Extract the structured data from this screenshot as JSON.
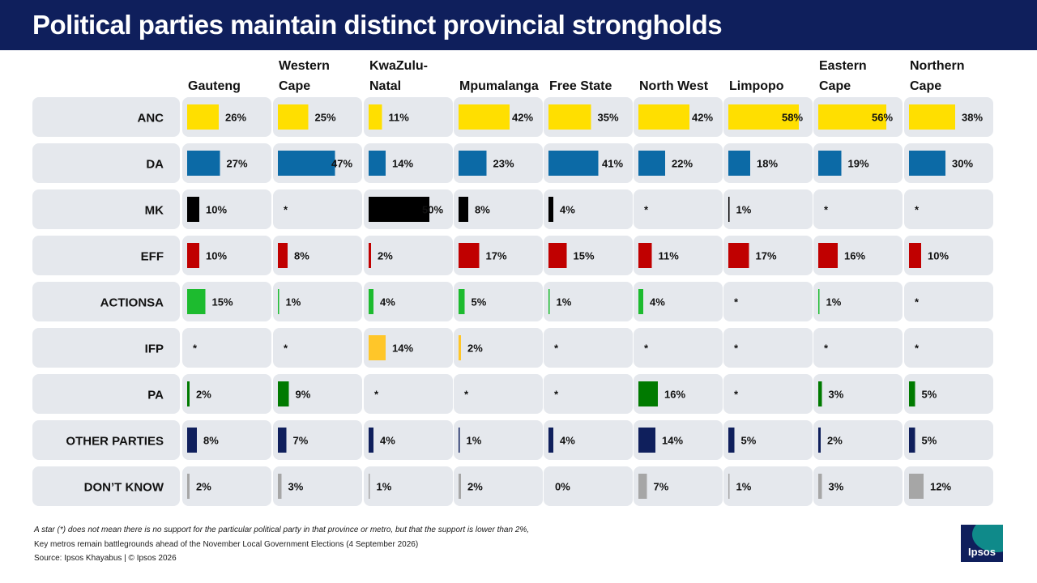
{
  "title": "Political parties maintain distinct provincial strongholds",
  "footnotes": {
    "star_note": "A star (*) does not mean there is no support for the particular political party in that province or metro, but that the support is lower than 2%,",
    "context": "Key metros remain battlegrounds ahead of the November Local Government Elections (4 September 2026)",
    "source": "Source: Ipsos Khayabus | © Ipsos 2026"
  },
  "logo_text": "Ipsos",
  "colors": {
    "ANC": "#ffdf00",
    "DA": "#0c6aa6",
    "MK": "#000000",
    "EFF": "#c00000",
    "ACTIONSA": "#1dbb2f",
    "IFP": "#ffc629",
    "PA": "#007a00",
    "OTHER PARTIES": "#0f1f5c",
    "DON'T KNOW": "#a6a6a6",
    "row_bg": "#e5e8ed",
    "title_bg": "#0f1f5c"
  },
  "chart_data": {
    "type": "bar",
    "title": "Political parties maintain distinct provincial strongholds",
    "categories": [
      "Gauteng",
      "Western Cape",
      "KwaZulu-Natal",
      "Mpumalanga",
      "Free State",
      "North West",
      "Limpopo",
      "Eastern Cape",
      "Northern Cape"
    ],
    "category_label_lines": [
      [
        "Gauteng"
      ],
      [
        "Western",
        "Cape"
      ],
      [
        "KwaZulu-",
        "Natal"
      ],
      [
        "Mpumalanga"
      ],
      [
        "Free State"
      ],
      [
        "North West"
      ],
      [
        "Limpopo"
      ],
      [
        "Eastern",
        "Cape"
      ],
      [
        "Northern",
        "Cape"
      ]
    ],
    "value_unit": "%",
    "below_threshold_marker": "*",
    "series": [
      {
        "name": "ANC",
        "values": [
          26,
          25,
          11,
          42,
          35,
          42,
          58,
          56,
          38
        ]
      },
      {
        "name": "DA",
        "values": [
          27,
          47,
          14,
          23,
          41,
          22,
          18,
          19,
          30
        ]
      },
      {
        "name": "MK",
        "values": [
          10,
          null,
          50,
          8,
          4,
          null,
          1,
          null,
          null
        ]
      },
      {
        "name": "EFF",
        "values": [
          10,
          8,
          2,
          17,
          15,
          11,
          17,
          16,
          10
        ]
      },
      {
        "name": "ACTIONSA",
        "values": [
          15,
          1,
          4,
          5,
          1,
          4,
          null,
          1,
          null
        ]
      },
      {
        "name": "IFP",
        "values": [
          null,
          null,
          14,
          2,
          null,
          null,
          null,
          null,
          null
        ]
      },
      {
        "name": "PA",
        "values": [
          2,
          9,
          null,
          null,
          null,
          16,
          null,
          3,
          5
        ]
      },
      {
        "name": "OTHER PARTIES",
        "values": [
          8,
          7,
          4,
          1,
          4,
          14,
          5,
          2,
          5
        ]
      },
      {
        "name": "DON'T KNOW",
        "values": [
          2,
          3,
          1,
          2,
          0,
          7,
          1,
          3,
          12
        ]
      }
    ],
    "row_labels": [
      "ANC",
      "DA",
      "MK",
      "EFF",
      "ACTIONSA",
      "IFP",
      "PA",
      "OTHER PARTIES",
      "DON’T KNOW"
    ]
  }
}
